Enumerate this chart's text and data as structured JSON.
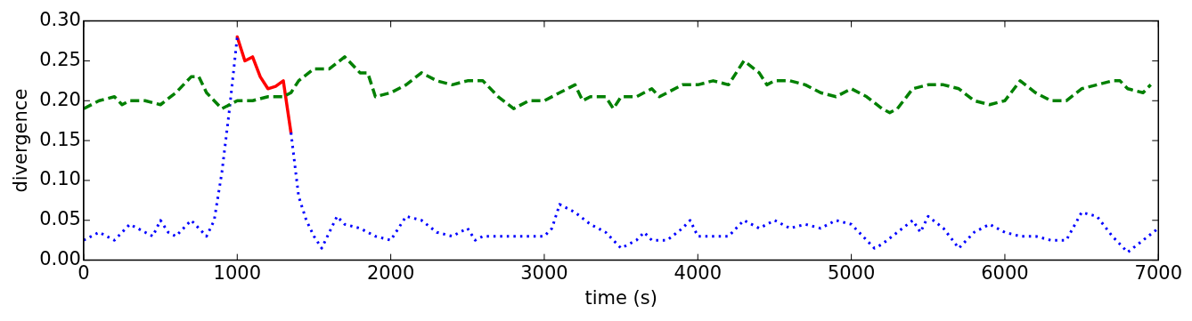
{
  "chart_data": {
    "type": "line",
    "xlabel": "time (s)",
    "ylabel": "divergence",
    "xlim": [
      0,
      7000
    ],
    "xticks": [
      0,
      1000,
      2000,
      3000,
      4000,
      5000,
      6000,
      7000
    ],
    "ylim": [
      0,
      0.3
    ],
    "yticks": [
      {
        "value": 0,
        "label": "0.00"
      },
      {
        "value": 0.05,
        "label": "0.05"
      },
      {
        "value": 0.1,
        "label": "0.10"
      },
      {
        "value": 0.15,
        "label": "0.15"
      },
      {
        "value": 0.2,
        "label": "0.20"
      },
      {
        "value": 0.25,
        "label": "0.25"
      },
      {
        "value": 0.3,
        "label": "0.30"
      }
    ],
    "grid": false,
    "legend": false,
    "marker": "none",
    "series": [
      {
        "color": "#008000",
        "line_style": "dashed",
        "x": [
          0,
          100,
          200,
          250,
          300,
          400,
          500,
          600,
          700,
          750,
          800,
          900,
          1000,
          1100,
          1200,
          1300,
          1350,
          1400,
          1500,
          1600,
          1700,
          1800,
          1850,
          1900,
          2000,
          2100,
          2200,
          2300,
          2400,
          2500,
          2600,
          2700,
          2800,
          2900,
          3000,
          3100,
          3200,
          3250,
          3300,
          3400,
          3450,
          3500,
          3600,
          3700,
          3750,
          3800,
          3900,
          4000,
          4100,
          4200,
          4300,
          4400,
          4450,
          4500,
          4600,
          4700,
          4800,
          4900,
          5000,
          5100,
          5200,
          5250,
          5300,
          5400,
          5500,
          5600,
          5700,
          5800,
          5900,
          6000,
          6100,
          6200,
          6300,
          6400,
          6500,
          6600,
          6700,
          6750,
          6800,
          6900,
          6950
        ],
        "values": [
          0.19,
          0.2,
          0.205,
          0.195,
          0.2,
          0.2,
          0.195,
          0.21,
          0.23,
          0.23,
          0.21,
          0.19,
          0.2,
          0.2,
          0.205,
          0.205,
          0.21,
          0.225,
          0.24,
          0.24,
          0.255,
          0.235,
          0.235,
          0.205,
          0.21,
          0.22,
          0.235,
          0.225,
          0.22,
          0.225,
          0.225,
          0.205,
          0.19,
          0.2,
          0.2,
          0.21,
          0.22,
          0.2,
          0.205,
          0.205,
          0.19,
          0.205,
          0.205,
          0.215,
          0.205,
          0.21,
          0.22,
          0.22,
          0.225,
          0.22,
          0.25,
          0.235,
          0.22,
          0.225,
          0.225,
          0.22,
          0.21,
          0.205,
          0.215,
          0.205,
          0.19,
          0.185,
          0.19,
          0.215,
          0.22,
          0.22,
          0.215,
          0.2,
          0.195,
          0.2,
          0.225,
          0.21,
          0.2,
          0.2,
          0.215,
          0.22,
          0.225,
          0.225,
          0.215,
          0.21,
          0.22
        ]
      },
      {
        "color": "#0000ff",
        "line_style": "dotted",
        "x": [
          0,
          100,
          200,
          300,
          400,
          450,
          500,
          550,
          600,
          700,
          800,
          850,
          900,
          950,
          1000,
          1050,
          1350,
          1400,
          1450,
          1500,
          1550,
          1600,
          1650,
          1700,
          1800,
          1900,
          2000,
          2100,
          2200,
          2300,
          2400,
          2500,
          2550,
          2600,
          2700,
          2800,
          2900,
          3000,
          3050,
          3100,
          3200,
          3300,
          3400,
          3450,
          3500,
          3600,
          3650,
          3700,
          3800,
          3900,
          3950,
          4000,
          4100,
          4200,
          4300,
          4400,
          4500,
          4600,
          4700,
          4800,
          4900,
          5000,
          5100,
          5150,
          5200,
          5300,
          5400,
          5450,
          5500,
          5600,
          5700,
          5800,
          5900,
          6000,
          6100,
          6200,
          6300,
          6400,
          6500,
          6600,
          6700,
          6800,
          6900,
          7000
        ],
        "values": [
          0.025,
          0.035,
          0.025,
          0.045,
          0.035,
          0.03,
          0.05,
          0.035,
          0.03,
          0.05,
          0.03,
          0.05,
          0.11,
          0.19,
          0.28,
          null,
          0.16,
          0.08,
          0.05,
          0.03,
          0.015,
          0.035,
          0.055,
          0.045,
          0.04,
          0.03,
          0.025,
          0.055,
          0.05,
          0.035,
          0.03,
          0.04,
          0.025,
          0.03,
          0.03,
          0.03,
          0.03,
          0.03,
          0.04,
          0.07,
          0.06,
          0.045,
          0.035,
          0.025,
          0.015,
          0.025,
          0.035,
          0.025,
          0.025,
          0.04,
          0.05,
          0.03,
          0.03,
          0.03,
          0.05,
          0.04,
          0.05,
          0.04,
          0.045,
          0.04,
          0.05,
          0.045,
          0.025,
          0.015,
          0.02,
          0.035,
          0.05,
          0.035,
          0.055,
          0.04,
          0.015,
          0.035,
          0.045,
          0.035,
          0.03,
          0.03,
          0.025,
          0.025,
          0.06,
          0.055,
          0.03,
          0.01,
          0.025,
          0.04
        ]
      },
      {
        "color": "#ff0000",
        "line_style": "solid",
        "x": [
          1000,
          1050,
          1100,
          1150,
          1200,
          1250,
          1300,
          1350
        ],
        "values": [
          0.28,
          0.25,
          0.255,
          0.23,
          0.215,
          0.218,
          0.225,
          0.16
        ]
      }
    ]
  }
}
